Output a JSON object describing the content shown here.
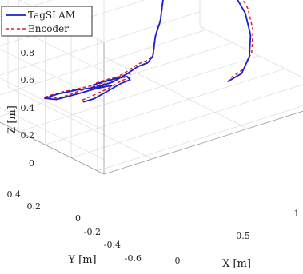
{
  "chart_data": {
    "type": "line",
    "projection": "3d",
    "title": "",
    "xlabel": "X [m]",
    "ylabel": "Y [m]",
    "zlabel": "Z [m]",
    "xlim": [
      -0.25,
      1.0
    ],
    "ylim": [
      -0.65,
      0.45
    ],
    "zlim": [
      -0.1,
      0.8
    ],
    "x_ticks": [
      "0",
      "0.5",
      "1"
    ],
    "y_ticks": [
      "0.4",
      "0.2",
      "0",
      "-0.2",
      "-0.4",
      "-0.6"
    ],
    "z_ticks": [
      "0",
      "0.2",
      "0.4",
      "0.6",
      "0.8"
    ],
    "grid": true,
    "legend_position": "top-left",
    "series": [
      {
        "name": "TagSLAM",
        "color": "#1f1fcc",
        "dash": "solid",
        "points": [
          [
            0.05,
            -0.05,
            0.0
          ],
          [
            0.06,
            -0.12,
            0.05
          ],
          [
            0.1,
            -0.16,
            0.1
          ],
          [
            0.16,
            -0.18,
            0.14
          ],
          [
            0.22,
            -0.16,
            0.13
          ],
          [
            0.26,
            -0.08,
            0.1
          ],
          [
            0.27,
            0.0,
            0.05
          ],
          [
            0.25,
            0.08,
            0.0
          ],
          [
            0.22,
            0.12,
            -0.03
          ],
          [
            0.18,
            0.05,
            0.0
          ],
          [
            0.16,
            -0.05,
            0.06
          ],
          [
            0.15,
            -0.12,
            0.1
          ],
          [
            0.12,
            -0.14,
            0.12
          ],
          [
            0.08,
            -0.1,
            0.1
          ],
          [
            0.04,
            -0.04,
            0.06
          ],
          [
            0.02,
            0.02,
            0.02
          ],
          [
            0.0,
            0.08,
            -0.02
          ],
          [
            -0.02,
            0.14,
            -0.03
          ],
          [
            0.02,
            0.1,
            0.0
          ],
          [
            0.08,
            0.04,
            0.03
          ],
          [
            0.14,
            -0.02,
            0.05
          ],
          [
            0.2,
            -0.06,
            0.08
          ],
          [
            0.26,
            -0.08,
            0.12
          ],
          [
            0.3,
            -0.1,
            0.16
          ],
          [
            0.34,
            -0.12,
            0.18
          ],
          [
            0.38,
            -0.1,
            0.2
          ],
          [
            0.4,
            -0.08,
            0.25
          ],
          [
            0.42,
            -0.06,
            0.3
          ],
          [
            0.46,
            -0.04,
            0.38
          ],
          [
            0.5,
            0.0,
            0.48
          ],
          [
            0.54,
            0.02,
            0.58
          ],
          [
            0.6,
            0.0,
            0.64
          ],
          [
            0.66,
            -0.04,
            0.65
          ],
          [
            0.72,
            -0.1,
            0.6
          ],
          [
            0.76,
            -0.16,
            0.5
          ],
          [
            0.78,
            -0.22,
            0.38
          ],
          [
            0.78,
            -0.26,
            0.25
          ],
          [
            0.76,
            -0.28,
            0.12
          ],
          [
            0.72,
            -0.28,
            0.02
          ],
          [
            0.66,
            -0.26,
            -0.02
          ]
        ]
      },
      {
        "name": "Encoder",
        "color": "#e02020",
        "dash": "dashed",
        "points": [
          [
            0.06,
            -0.03,
            0.0
          ],
          [
            0.07,
            -0.1,
            0.06
          ],
          [
            0.11,
            -0.15,
            0.11
          ],
          [
            0.17,
            -0.17,
            0.15
          ],
          [
            0.23,
            -0.15,
            0.14
          ],
          [
            0.28,
            -0.07,
            0.11
          ],
          [
            0.29,
            0.01,
            0.05
          ],
          [
            0.27,
            0.09,
            0.0
          ],
          [
            0.24,
            0.13,
            -0.03
          ],
          [
            0.2,
            0.06,
            0.0
          ],
          [
            0.17,
            -0.04,
            0.07
          ],
          [
            0.16,
            -0.11,
            0.11
          ],
          [
            0.13,
            -0.13,
            0.13
          ],
          [
            0.09,
            -0.09,
            0.11
          ],
          [
            0.05,
            -0.03,
            0.07
          ],
          [
            0.03,
            0.03,
            0.02
          ],
          [
            0.01,
            0.09,
            -0.02
          ],
          [
            -0.01,
            0.15,
            -0.03
          ],
          [
            0.03,
            0.11,
            0.0
          ],
          [
            0.09,
            0.05,
            0.03
          ],
          [
            0.15,
            -0.01,
            0.06
          ],
          [
            0.21,
            -0.05,
            0.09
          ],
          [
            0.27,
            -0.07,
            0.13
          ],
          [
            0.31,
            -0.09,
            0.17
          ],
          [
            0.35,
            -0.11,
            0.19
          ],
          [
            0.39,
            -0.09,
            0.21
          ],
          [
            0.41,
            -0.07,
            0.26
          ],
          [
            0.43,
            -0.05,
            0.31
          ],
          [
            0.47,
            -0.03,
            0.39
          ],
          [
            0.51,
            0.01,
            0.49
          ],
          [
            0.55,
            0.03,
            0.6
          ],
          [
            0.61,
            0.01,
            0.66
          ],
          [
            0.68,
            -0.03,
            0.67
          ],
          [
            0.74,
            -0.09,
            0.62
          ],
          [
            0.78,
            -0.15,
            0.52
          ],
          [
            0.8,
            -0.21,
            0.4
          ],
          [
            0.8,
            -0.25,
            0.27
          ],
          [
            0.78,
            -0.27,
            0.14
          ],
          [
            0.74,
            -0.27,
            0.04
          ],
          [
            0.68,
            -0.25,
            -0.01
          ]
        ]
      }
    ]
  }
}
